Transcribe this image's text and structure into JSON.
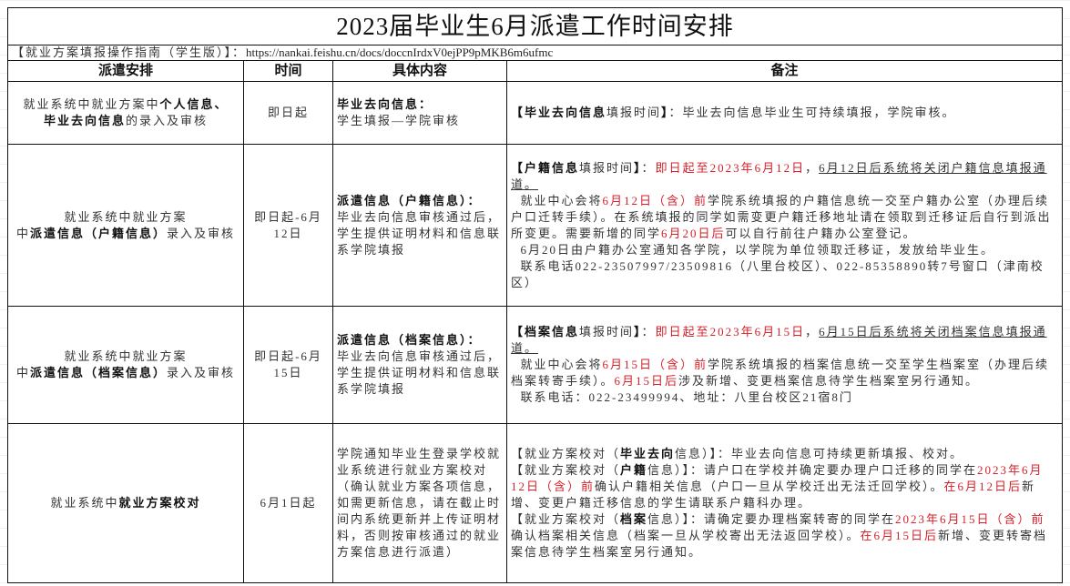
{
  "title": "2023届毕业生6月派遣工作时间安排",
  "guide": {
    "label": "【就业方案填报操作指南（学生版）】：",
    "url": "https://nankai.feishu.cn/docs/doccnIrdxV0ejPP9pMKB6m6ufmc"
  },
  "headers": [
    "派遣安排",
    "时间",
    "具体内容",
    "备注"
  ],
  "rows": [
    {
      "arrangement": [
        {
          "t": "就业系统中就业方案中"
        },
        {
          "t": "个人信息、",
          "b": 1
        },
        {
          "t": "\n"
        },
        {
          "t": "毕业去向信息",
          "b": 1
        },
        {
          "t": "的录入及审核"
        }
      ],
      "time": "即日起",
      "content": [
        {
          "t": "毕业去向信息：",
          "b": 1
        },
        {
          "t": "\n学生填报—学院审核"
        }
      ],
      "notes": [
        [
          {
            "t": "【毕业去向信息",
            "b": 1
          },
          {
            "t": "填报时间"
          },
          {
            "t": "】",
            "b": 1
          },
          {
            "t": "：毕业去向信息毕业生可持续填报，学院审核。"
          }
        ]
      ]
    },
    {
      "arrangement": [
        {
          "t": "就业系统中就业方案\n中"
        },
        {
          "t": "派遣信息（户籍信息）",
          "b": 1
        },
        {
          "t": "录入及审核"
        }
      ],
      "time": "即日起-6月12日",
      "content": [
        {
          "t": "派遣信息（户籍信息）：",
          "b": 1
        },
        {
          "t": "\n毕业去向信息审核通过后，学生提供证明材料和信息联系学院填报"
        }
      ],
      "notes": [
        [
          {
            "t": "【户籍信息",
            "b": 1
          },
          {
            "t": "填报时间"
          },
          {
            "t": "】",
            "b": 1
          },
          {
            "t": "："
          },
          {
            "t": "即日起至2023年6月12日",
            "r": 1
          },
          {
            "t": "，"
          },
          {
            "t": "6月12日后系统将关闭户籍信息填报通道。",
            "u": 1
          }
        ],
        [
          {
            "t": "  就业中心会将"
          },
          {
            "t": "6月12日（含）前",
            "r": 1
          },
          {
            "t": "学院系统填报的户籍信息统一交至户籍办公室（办理后续户口迁转手续）。在系统填报的同学如需变更户籍迁移地址请在领取到迁移证后自行到派出所变更。需要新增的同学"
          },
          {
            "t": "6月20日后",
            "r": 1
          },
          {
            "t": "可以自行前往户籍办公室登记。"
          }
        ],
        [
          {
            "t": "  6月20日由户籍办公室通知各学院，以学院为单位领取迁移证，发放给毕业生。"
          }
        ],
        [
          {
            "t": "  联系电话022-23507997/23509816（八里台校区）、022-85358890转7号窗口（津南校区）"
          }
        ]
      ]
    },
    {
      "arrangement": [
        {
          "t": "就业系统中就业方案\n中"
        },
        {
          "t": "派遣信息（档案信息）",
          "b": 1
        },
        {
          "t": "录入及审核"
        }
      ],
      "time": "即日起-6月15日",
      "content": [
        {
          "t": "派遣信息（档案信息）：",
          "b": 1
        },
        {
          "t": "\n毕业去向信息审核通过后，学生提供证明材料和信息联系学院填报"
        }
      ],
      "notes": [
        [
          {
            "t": "【档案信息",
            "b": 1
          },
          {
            "t": "填报时间"
          },
          {
            "t": "】",
            "b": 1
          },
          {
            "t": "："
          },
          {
            "t": "即日起至2023年6月15日",
            "r": 1
          },
          {
            "t": "，"
          },
          {
            "t": "6月15日后系统将关闭档案信息填报通道。",
            "u": 1
          }
        ],
        [
          {
            "t": "  就业中心会将"
          },
          {
            "t": "6月15日（含）前",
            "r": 1
          },
          {
            "t": "学院系统填报的档案信息统一交至学生档案室（办理后续档案转寄手续）。"
          },
          {
            "t": "6月15日后",
            "r": 1
          },
          {
            "t": "涉及新增、变更档案信息待学生档案室另行通知。"
          }
        ],
        [
          {
            "t": "  联系电话：022-23499994、地址：八里台校区21宿8门"
          }
        ]
      ]
    },
    {
      "arrangement": [
        {
          "t": "就业系统中"
        },
        {
          "t": "就业方案校对",
          "b": 1
        }
      ],
      "time": "6月1日起",
      "content": [
        {
          "t": "学院通知毕业生登录学校就业系统进行就业方案校对（确认就业方案各项信息，如需更新信息，请在截止时间内系统更新并上传证明材料，否则按审核通过的就业方案信息进行派遣）"
        }
      ],
      "notes": [
        [
          {
            "t": "【就业方案校对（"
          },
          {
            "t": "毕业去向",
            "b": 1
          },
          {
            "t": "信息）】：毕业去向信息可持续更新填报、校对。"
          }
        ],
        [
          {
            "t": "【就业方案校对（"
          },
          {
            "t": "户籍",
            "b": 1
          },
          {
            "t": "信息）】：请户口在学校并确定要办理户口迁移的同学在"
          },
          {
            "t": "2023年6月12日（含）前",
            "r": 1
          },
          {
            "t": "确认户籍相关信息（户口一旦从学校迁出无法迁回学校）。"
          },
          {
            "t": "在6月12日后",
            "r": 1
          },
          {
            "t": "新增、变更户籍迁移信息的学生请联系户籍科办理。"
          }
        ],
        [
          {
            "t": "【就业方案校对（"
          },
          {
            "t": "档案",
            "b": 1
          },
          {
            "t": "信息）】：请确定要办理档案转寄的同学在"
          },
          {
            "t": "2023年6月15日（含）前",
            "r": 1
          },
          {
            "t": "确认档案相关信息（档案一旦从学校寄出无法返回学校）。"
          },
          {
            "t": "在6月15日后",
            "r": 1
          },
          {
            "t": "新增、变更转寄档案信息待学生档案室另行通知。"
          }
        ]
      ]
    }
  ],
  "colors": {
    "highlight": "#d6202a",
    "border": "#111111"
  }
}
